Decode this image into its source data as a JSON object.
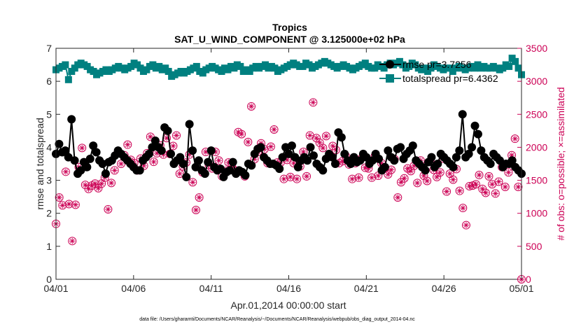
{
  "chart_data": {
    "type": "line",
    "title": "Tropics",
    "subtitle": "SAT_U_WIND_COMPONENT @ 3.125000e+02 hPa",
    "xlabel": "Apr.01,2014 00:00:00 start",
    "ylabel_left": "rmse and totalspread",
    "ylabel_right": "# of obs: o=possible; ×=assimilated",
    "footnote": "data file: /Users/gharamti/Documents/NCAR/Reanalysis/~/Documents/NCAR/Reanalysis/webpub/obs_diag_output_2014-04.nc",
    "xlim": [
      0,
      30
    ],
    "ylim_left": [
      0,
      7
    ],
    "ylim_right": [
      0,
      3500
    ],
    "x_ticks": [
      0,
      5,
      10,
      15,
      20,
      25,
      30
    ],
    "x_tick_labels": [
      "04/01",
      "04/06",
      "04/11",
      "04/16",
      "04/21",
      "04/26",
      "05/01"
    ],
    "y_left_ticks": [
      "0",
      "1",
      "2",
      "3",
      "4",
      "5",
      "6",
      "7"
    ],
    "y_right_ticks": [
      "0",
      "500",
      "1000",
      "1500",
      "2000",
      "2500",
      "3000",
      "3500"
    ],
    "colors": {
      "rmse": "#000000",
      "totalspread": "#008080",
      "obs": "#cc0055"
    },
    "legend": {
      "position": "top-right",
      "entries": [
        "rmse pr=3.7256",
        "totalspread pr=6.4362"
      ]
    },
    "series": [
      {
        "name": "rmse pr=3.7256",
        "axis": "left",
        "values": [
          3.8,
          4.1,
          3.85,
          3.9,
          3.7,
          4.85,
          3.6,
          3.2,
          3.3,
          3.55,
          3.4,
          3.65,
          4.05,
          3.85,
          3.6,
          3.5,
          3.2,
          3.55,
          3.6,
          3.75,
          3.9,
          3.8,
          3.7,
          3.6,
          3.5,
          3.4,
          3.3,
          3.3,
          3.6,
          3.7,
          3.8,
          4.0,
          4.2,
          4.0,
          3.9,
          4.6,
          4.5,
          3.8,
          3.5,
          3.6,
          3.7,
          3.5,
          3.1,
          4.7,
          3.9,
          3.4,
          3.6,
          3.3,
          3.2,
          3.55,
          3.9,
          3.4,
          3.3,
          3.35,
          3.1,
          3.25,
          3.3,
          3.55,
          3.2,
          3.3,
          3.25,
          3.15,
          3.5,
          3.45,
          3.8,
          3.95,
          4.0,
          3.7,
          3.6,
          3.5,
          3.5,
          3.45,
          3.35,
          3.7,
          4.0,
          3.8,
          4.05,
          3.7,
          3.4,
          3.6,
          3.7,
          3.6,
          4.0,
          3.75,
          3.5,
          3.4,
          3.3,
          3.65,
          3.8,
          3.7,
          3.5,
          4.45,
          4.3,
          3.8,
          3.6,
          3.5,
          3.7,
          3.55,
          3.6,
          3.8,
          3.7,
          3.5,
          3.6,
          3.8,
          3.65,
          3.3,
          3.4,
          3.9,
          3.7,
          3.6,
          3.95,
          4.0,
          3.65,
          3.8,
          3.9,
          4.05,
          3.6,
          3.5,
          3.4,
          3.3,
          3.55,
          3.7,
          3.4,
          3.5,
          3.8,
          3.7,
          3.6,
          3.5,
          3.4,
          3.7,
          3.9,
          5.0,
          3.7,
          3.8,
          4.0,
          4.65,
          4.4,
          3.9,
          3.7,
          3.6,
          3.5,
          3.8,
          3.7,
          3.6,
          3.4,
          3.5,
          3.5,
          3.6,
          3.4,
          3.3,
          3.2
        ]
      },
      {
        "name": "totalspread pr=6.4362",
        "axis": "left",
        "values": [
          6.35,
          6.4,
          6.45,
          6.5,
          6.05,
          6.3,
          6.4,
          6.5,
          6.55,
          6.5,
          6.45,
          6.35,
          6.3,
          6.2,
          6.25,
          6.3,
          6.35,
          6.3,
          6.35,
          6.4,
          6.45,
          6.4,
          6.35,
          6.4,
          6.45,
          6.55,
          6.5,
          6.4,
          6.3,
          6.35,
          6.45,
          6.5,
          6.4,
          6.45,
          6.35,
          6.4,
          6.3,
          6.15,
          6.2,
          6.25,
          6.3,
          6.25,
          6.3,
          6.35,
          6.4,
          6.45,
          6.3,
          6.25,
          6.35,
          6.4,
          6.45,
          6.4,
          6.35,
          6.3,
          6.4,
          6.35,
          6.45,
          6.4,
          6.5,
          6.45,
          6.3,
          6.35,
          6.3,
          6.4,
          6.45,
          6.4,
          6.45,
          6.5,
          6.4,
          6.45,
          6.4,
          6.3,
          6.35,
          6.4,
          6.45,
          6.5,
          6.55,
          6.5,
          6.45,
          6.45,
          6.55,
          6.5,
          6.4,
          6.45,
          6.5,
          6.55,
          6.6,
          6.55,
          6.5,
          6.45,
          6.4,
          6.45,
          6.5,
          6.45,
          6.4,
          6.35,
          6.4,
          6.45,
          6.5,
          6.55,
          6.45,
          6.4,
          6.4,
          6.5,
          6.45,
          6.4,
          6.5,
          6.55,
          6.5,
          6.55,
          6.6,
          6.5,
          6.4,
          6.45,
          6.55,
          6.5,
          6.4,
          6.35,
          6.4,
          6.3,
          6.4,
          6.5,
          6.45,
          6.4,
          6.35,
          6.4,
          6.4,
          6.3,
          6.4,
          6.45,
          6.4,
          6.35,
          6.4,
          6.45,
          6.4,
          6.5,
          6.4,
          6.45,
          6.4,
          6.4,
          6.45,
          6.4,
          6.35,
          6.4,
          6.5,
          6.45,
          6.7,
          6.6,
          6.4,
          6.2
        ]
      },
      {
        "name": "possible observations",
        "axis": "right",
        "values": [
          840,
          1240,
          1120,
          1630,
          1140,
          580,
          1130,
          1700,
          1990,
          1430,
          1370,
          1420,
          1450,
          1380,
          1450,
          1540,
          1060,
          1460,
          1650,
          1920,
          1750,
          1880,
          2040,
          1810,
          1760,
          1650,
          1830,
          1720,
          1910,
          2160,
          1780,
          1910,
          2030,
          1890,
          2140,
          1900,
          2020,
          2180,
          1600,
          1710,
          1770,
          1890,
          1470,
          1050,
          1240,
          1620,
          1930,
          1730,
          1680,
          1930,
          1800,
          1560,
          1640,
          1770,
          1720,
          1650,
          2230,
          2200,
          1560,
          2080,
          2620,
          1820,
          1930,
          2060,
          1970,
          1760,
          2010,
          2270,
          1770,
          1770,
          1520,
          1810,
          1550,
          1760,
          1520,
          1710,
          1930,
          1560,
          2180,
          2680,
          2140,
          2070,
          1990,
          2170,
          1860,
          2020,
          1960,
          1760,
          1790,
          1870,
          1740,
          1520,
          1760,
          1540,
          1840,
          1690,
          1680,
          1540,
          1870,
          1570,
          1760,
          1680,
          1590,
          1660,
          1820,
          1240,
          1470,
          1530,
          1680,
          1640,
          1720,
          1460,
          1800,
          1570,
          1490,
          1780,
          1660,
          1550,
          1620,
          1830,
          1330,
          1600,
          1510,
          1670,
          1340,
          1080,
          820,
          1410,
          1420,
          1440,
          1580,
          1370,
          1310,
          1560,
          1440,
          1300,
          1480,
          1700,
          1400,
          1620,
          1880,
          2130,
          1400,
          0
        ]
      }
    ]
  }
}
